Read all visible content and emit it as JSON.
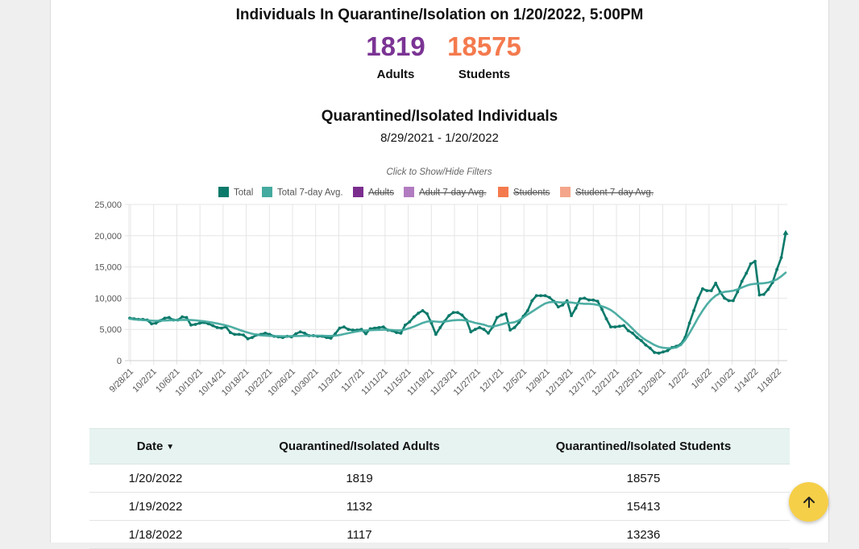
{
  "headline": "Individuals In Quarantine/Isolation on 1/20/2022, 5:00PM",
  "stats": {
    "adults": {
      "value": "1819",
      "label": "Adults",
      "color": "#7b3494"
    },
    "students": {
      "value": "18575",
      "label": "Students",
      "color": "#f47a4e"
    }
  },
  "chart_heading": {
    "title": "Quarantined/Isolated Individuals",
    "range": "8/29/2021 - 1/20/2022"
  },
  "chart_data": {
    "type": "line",
    "filter_hint": "Click to Show/Hide Filters",
    "legend_position": "top",
    "grid": true,
    "ylim": [
      0,
      25000
    ],
    "y_ticks": [
      "0",
      "5,000",
      "10,000",
      "15,000",
      "20,000",
      "25,000"
    ],
    "x_ticks": [
      "9/28/21",
      "10/2/21",
      "10/6/21",
      "10/10/21",
      "10/14/21",
      "10/18/21",
      "10/22/21",
      "10/26/21",
      "10/30/21",
      "11/3/21",
      "11/7/21",
      "11/11/21",
      "11/15/21",
      "11/19/21",
      "11/23/21",
      "11/27/21",
      "12/1/21",
      "12/5/21",
      "12/9/21",
      "12/13/21",
      "12/17/21",
      "12/21/21",
      "12/25/21",
      "12/29/21",
      "1/2/22",
      "1/6/22",
      "1/10/22",
      "1/14/22",
      "1/18/22"
    ],
    "legend": [
      {
        "name": "Total",
        "color": "#0b7a6b",
        "hidden": false
      },
      {
        "name": "Total 7-day Avg.",
        "color": "#45aa9f",
        "hidden": false
      },
      {
        "name": "Adults",
        "color": "#7b2d8e",
        "hidden": true
      },
      {
        "name": "Adult 7-day Avg.",
        "color": "#b27cc0",
        "hidden": true
      },
      {
        "name": "Students",
        "color": "#f47a4e",
        "hidden": true
      },
      {
        "name": "Student 7-day Avg.",
        "color": "#f4a58a",
        "hidden": true
      }
    ],
    "x_start": "9/27/21",
    "x_end": "1/20/22",
    "series": [
      {
        "name": "Total",
        "color": "#0b7a6b",
        "values": [
          6800,
          6700,
          6600,
          6600,
          6500,
          5900,
          6000,
          6400,
          6800,
          6900,
          6500,
          6500,
          7000,
          6900,
          5700,
          5800,
          6000,
          6100,
          5900,
          5600,
          5300,
          5200,
          5400,
          4500,
          4200,
          4200,
          4100,
          3500,
          3700,
          4100,
          4200,
          4400,
          4200,
          3900,
          3800,
          3700,
          3900,
          3800,
          4300,
          4600,
          4400,
          4000,
          4000,
          3900,
          3900,
          3700,
          3600,
          4300,
          5200,
          5400,
          5000,
          4900,
          4900,
          5000,
          4300,
          5100,
          5200,
          5300,
          5400,
          4900,
          4800,
          4500,
          4400,
          5700,
          6200,
          7000,
          7600,
          8000,
          7500,
          6000,
          4200,
          5300,
          6300,
          7200,
          7700,
          7700,
          7300,
          6500,
          4600,
          5000,
          5300,
          5000,
          4400,
          5400,
          6900,
          7300,
          7500,
          4900,
          5300,
          6100,
          7100,
          8000,
          9600,
          10400,
          10400,
          10400,
          10100,
          9500,
          8600,
          8900,
          9600,
          7200,
          8400,
          9900,
          10000,
          9700,
          9700,
          9500,
          8200,
          6700,
          5400,
          5400,
          5500,
          5600,
          4800,
          4400,
          3700,
          3200,
          2500,
          2000,
          1300,
          1200,
          1400,
          1600,
          2100,
          2300,
          2600,
          3700,
          6000,
          8000,
          10000,
          11500,
          11200,
          11200,
          12400,
          11000,
          10000,
          9600,
          9600,
          11000,
          12700,
          14000,
          15500,
          15900,
          10500,
          10600,
          11400,
          12500,
          14600,
          16500,
          20400
        ]
      },
      {
        "name": "Total 7-day Avg.",
        "color": "#45aa9f",
        "values": [
          6700,
          6600,
          6550,
          6500,
          6450,
          6400,
          6380,
          6400,
          6420,
          6450,
          6480,
          6500,
          6520,
          6520,
          6500,
          6450,
          6380,
          6300,
          6200,
          6080,
          5950,
          5800,
          5650,
          5450,
          5200,
          4950,
          4700,
          4500,
          4300,
          4150,
          4050,
          4000,
          3950,
          3930,
          3920,
          3900,
          3910,
          3920,
          3940,
          3960,
          3980,
          4000,
          4000,
          3990,
          3980,
          3960,
          3950,
          4000,
          4100,
          4250,
          4400,
          4550,
          4680,
          4780,
          4830,
          4870,
          4900,
          4920,
          4950,
          4950,
          4900,
          4850,
          4850,
          5000,
          5200,
          5450,
          5750,
          6050,
          6250,
          6300,
          6250,
          6200,
          6250,
          6350,
          6450,
          6500,
          6500,
          6420,
          6250,
          6050,
          5900,
          5750,
          5500,
          5450,
          5600,
          5800,
          6000,
          6050,
          6150,
          6450,
          6900,
          7400,
          7850,
          8300,
          8750,
          9150,
          9350,
          9400,
          9350,
          9300,
          9350,
          9300,
          9200,
          9150,
          9100,
          9100,
          9050,
          8900,
          8700,
          8450,
          8100,
          7600,
          7000,
          6400,
          5800,
          5100,
          4400,
          3800,
          3300,
          2900,
          2500,
          2200,
          2050,
          2000,
          2000,
          2100,
          2500,
          3300,
          4400,
          5600,
          6900,
          8000,
          9000,
          9800,
          10400,
          10800,
          11000,
          11100,
          11200,
          11400,
          11700,
          12000,
          12200,
          12300,
          12350,
          12400,
          12500,
          12700,
          13000,
          13500,
          14100
        ]
      }
    ]
  },
  "table": {
    "headers": {
      "date": "Date",
      "adults": "Quarantined/Isolated Adults",
      "students": "Quarantined/Isolated Students"
    },
    "rows": [
      {
        "date": "1/20/2022",
        "adults": "1819",
        "students": "18575"
      },
      {
        "date": "1/19/2022",
        "adults": "1132",
        "students": "15413"
      },
      {
        "date": "1/18/2022",
        "adults": "1117",
        "students": "13236"
      }
    ]
  },
  "fab": {
    "icon": "arrow-up-icon",
    "color": "#f6cf48"
  }
}
